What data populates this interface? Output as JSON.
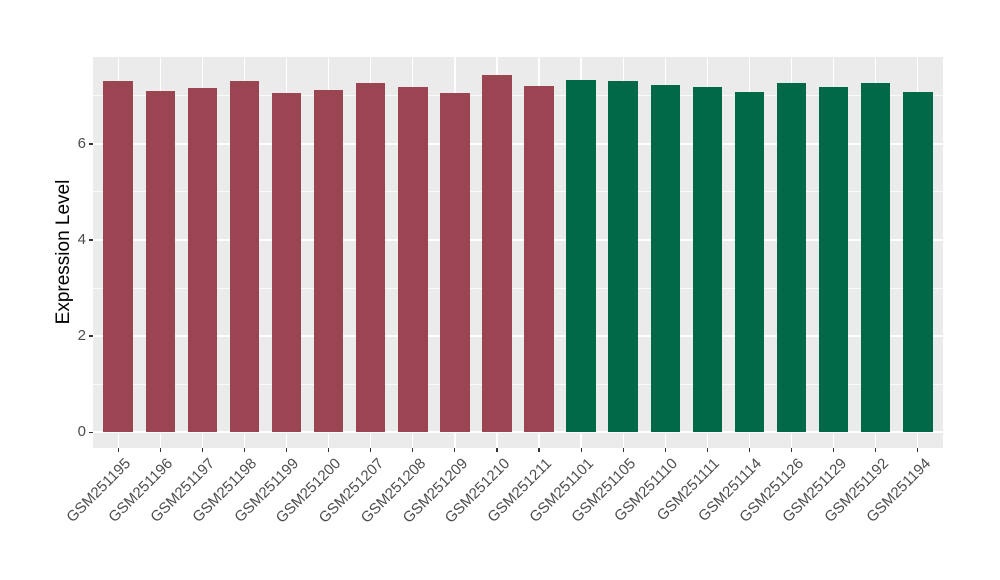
{
  "figure": {
    "background": "#FFFFFF",
    "panel_background": "#EBEBEB",
    "gridline_color": "#FFFFFF",
    "tick_color": "#333333",
    "axis_text_color": "#4D4D4D"
  },
  "chart_data": {
    "type": "bar",
    "title": "",
    "xlabel": "",
    "ylabel": "Expression Level",
    "yticks": [
      0,
      2,
      4,
      6
    ],
    "yminorticks": [
      1,
      3,
      5,
      7
    ],
    "ylim": [
      -0.33,
      7.81
    ],
    "grid": "horizontal major+minor and vertical major white gridlines on grey panel",
    "legend_position": "none",
    "group_colors": {
      "left_group": "#9B4452",
      "right_group": "#016948"
    },
    "bars": [
      {
        "label": "GSM251195",
        "value": 7.3,
        "group": "left_group"
      },
      {
        "label": "GSM251196",
        "value": 7.1,
        "group": "left_group"
      },
      {
        "label": "GSM251197",
        "value": 7.17,
        "group": "left_group"
      },
      {
        "label": "GSM251198",
        "value": 7.31,
        "group": "left_group"
      },
      {
        "label": "GSM251199",
        "value": 7.06,
        "group": "left_group"
      },
      {
        "label": "GSM251200",
        "value": 7.12,
        "group": "left_group"
      },
      {
        "label": "GSM251207",
        "value": 7.26,
        "group": "left_group"
      },
      {
        "label": "GSM251208",
        "value": 7.18,
        "group": "left_group"
      },
      {
        "label": "GSM251209",
        "value": 7.06,
        "group": "left_group"
      },
      {
        "label": "GSM251210",
        "value": 7.44,
        "group": "left_group"
      },
      {
        "label": "GSM251211",
        "value": 7.21,
        "group": "left_group"
      },
      {
        "label": "GSM251101",
        "value": 7.34,
        "group": "right_group"
      },
      {
        "label": "GSM251105",
        "value": 7.3,
        "group": "right_group"
      },
      {
        "label": "GSM251110",
        "value": 7.22,
        "group": "right_group"
      },
      {
        "label": "GSM251111",
        "value": 7.19,
        "group": "right_group"
      },
      {
        "label": "GSM251114",
        "value": 7.08,
        "group": "right_group"
      },
      {
        "label": "GSM251126",
        "value": 7.26,
        "group": "right_group"
      },
      {
        "label": "GSM251129",
        "value": 7.19,
        "group": "right_group"
      },
      {
        "label": "GSM251192",
        "value": 7.27,
        "group": "right_group"
      },
      {
        "label": "GSM251194",
        "value": 7.09,
        "group": "right_group"
      }
    ]
  }
}
